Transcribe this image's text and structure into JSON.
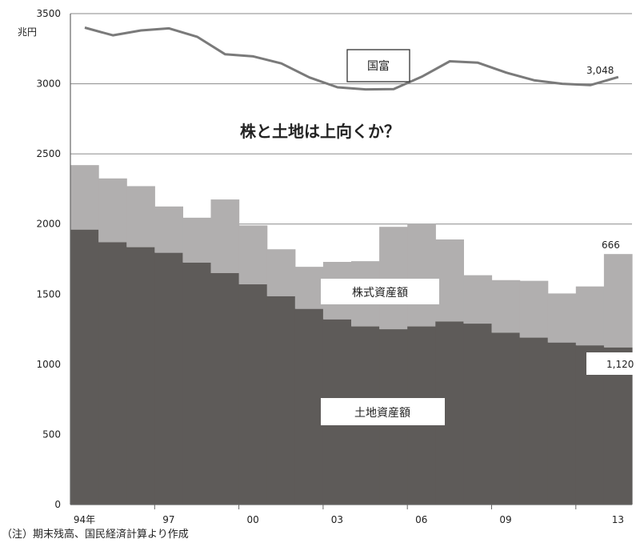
{
  "chart_data": {
    "type": "area",
    "title": "株と土地は上向くか？",
    "y_unit": "兆円",
    "ylim": [
      0,
      3500
    ],
    "yticks": [
      "0",
      "500",
      "1000",
      "1500",
      "2000",
      "2500",
      "3000",
      "3500"
    ],
    "x_tick_labels": [
      "94年",
      "97",
      "00",
      "03",
      "06",
      "09",
      "13"
    ],
    "years": [
      1994,
      1995,
      1996,
      1997,
      1998,
      1999,
      2000,
      2001,
      2002,
      2003,
      2004,
      2005,
      2006,
      2007,
      2008,
      2009,
      2010,
      2011,
      2012,
      2013
    ],
    "grid": true,
    "series": [
      {
        "name": "土地資産額",
        "kind": "stacked-step",
        "color": "#5e5b59",
        "values": [
          1960,
          1870,
          1835,
          1795,
          1725,
          1650,
          1570,
          1485,
          1395,
          1320,
          1270,
          1250,
          1270,
          1305,
          1290,
          1225,
          1190,
          1155,
          1135,
          1120
        ]
      },
      {
        "name": "株式資産額",
        "kind": "stacked-step",
        "color": "#b1afaf",
        "values": [
          460,
          455,
          435,
          330,
          320,
          525,
          420,
          335,
          300,
          410,
          465,
          730,
          730,
          585,
          345,
          375,
          405,
          350,
          420,
          666
        ]
      },
      {
        "name": "国富",
        "kind": "line",
        "color": "#7a7a7a",
        "values": [
          3400,
          3345,
          3380,
          3395,
          3335,
          3210,
          3195,
          3145,
          3045,
          2975,
          2960,
          2962,
          3050,
          3160,
          3150,
          3080,
          3025,
          3000,
          2990,
          3048
        ]
      }
    ],
    "labels": {
      "kokufu_box": "国富",
      "stock_box": "株式資産額",
      "land_box": "土地資産額",
      "kokufu_last": "3,048",
      "stock_last": "666",
      "land_last": "1,120"
    },
    "note": "（注）期末残高、国民経済計算より作成"
  }
}
